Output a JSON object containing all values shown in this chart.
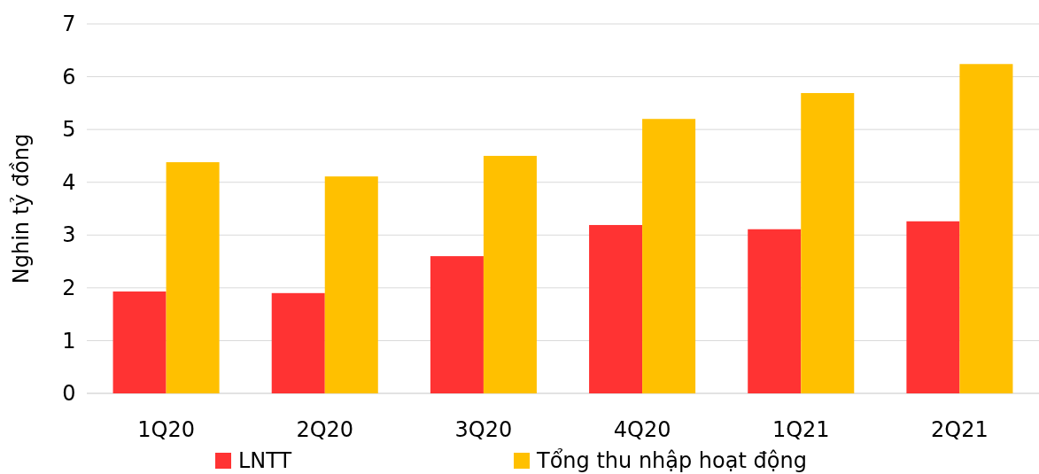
{
  "chart_data": {
    "type": "bar",
    "ylabel": "Nghin tỷ đồng",
    "categories": [
      "1Q20",
      "2Q20",
      "3Q20",
      "4Q20",
      "1Q21",
      "2Q21"
    ],
    "series": [
      {
        "name": "LNTT",
        "color": "#ff3333",
        "values": [
          1.93,
          1.9,
          2.6,
          3.19,
          3.11,
          3.26
        ]
      },
      {
        "name": "Tổng thu nhập hoạt động",
        "color": "#ffc000",
        "values": [
          4.38,
          4.11,
          4.5,
          5.2,
          5.69,
          6.24
        ]
      }
    ],
    "ylim": [
      0,
      7
    ],
    "yticks": [
      0,
      1,
      2,
      3,
      4,
      5,
      6,
      7
    ],
    "grid": "y",
    "legend": "bottom"
  }
}
